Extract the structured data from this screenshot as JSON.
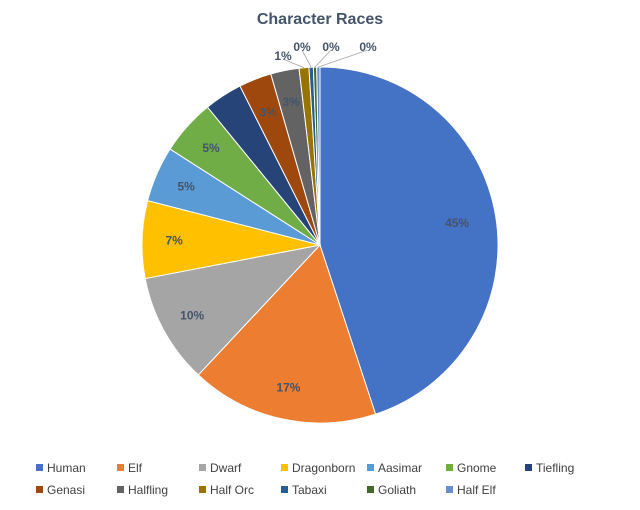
{
  "chart_data": {
    "type": "pie",
    "title": "Character Races",
    "legend_position": "bottom",
    "slices": [
      {
        "name": "Human",
        "value": 45.4,
        "label": "45%",
        "color": "#4472c4"
      },
      {
        "name": "Elf",
        "value": 17.2,
        "label": "17%",
        "color": "#ed7d31"
      },
      {
        "name": "Dwarf",
        "value": 10.1,
        "label": "10%",
        "color": "#a5a5a5"
      },
      {
        "name": "Dragonborn",
        "value": 7.1,
        "label": "7%",
        "color": "#ffc000"
      },
      {
        "name": "Aasimar",
        "value": 5.1,
        "label": "5%",
        "color": "#5b9bd5"
      },
      {
        "name": "Gnome",
        "value": 5.1,
        "label": "5%",
        "color": "#70ad47"
      },
      {
        "name": "Tiefling",
        "value": 3.5,
        "label": "",
        "color": "#264478"
      },
      {
        "name": "Genasi",
        "value": 3.0,
        "label": "3%",
        "color": "#9e480e"
      },
      {
        "name": "Halfling",
        "value": 2.6,
        "label": "3%",
        "color": "#636363"
      },
      {
        "name": "Half Orc",
        "value": 0.9,
        "label": "1%",
        "color": "#997300"
      },
      {
        "name": "Tabaxi",
        "value": 0.4,
        "label": "0%",
        "color": "#255e91"
      },
      {
        "name": "Goliath",
        "value": 0.3,
        "label": "0%",
        "color": "#43682b"
      },
      {
        "name": "Half Elf",
        "value": 0.3,
        "label": "0%",
        "color": "#698ed0"
      }
    ]
  }
}
